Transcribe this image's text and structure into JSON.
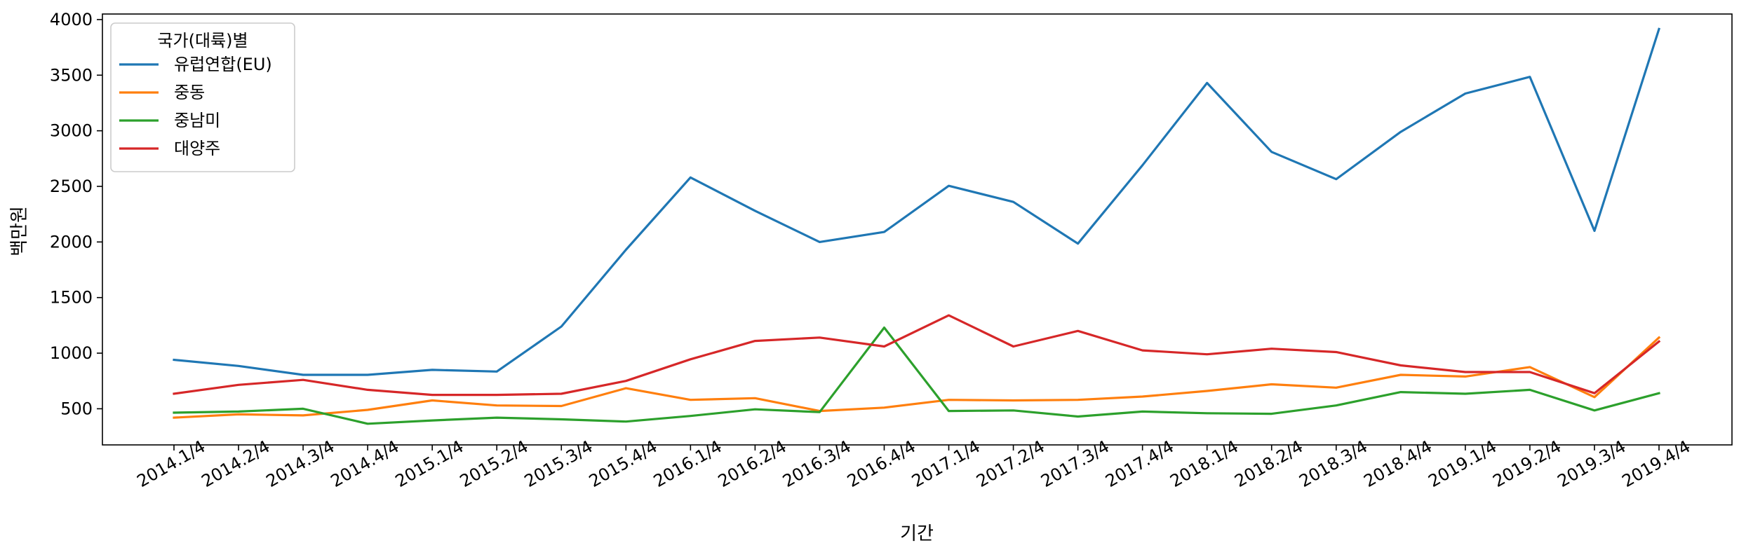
{
  "chart_data": {
    "type": "line",
    "xlabel": "기간",
    "ylabel": "백만원",
    "ylim": [
      175,
      4050
    ],
    "yticks": [
      500,
      1000,
      1500,
      2000,
      2500,
      3000,
      3500,
      4000
    ],
    "grid": false,
    "legend": {
      "title": "국가(대륙)별",
      "placement": "top-left"
    },
    "categories": [
      "2014.1/4",
      "2014.2/4",
      "2014.3/4",
      "2014.4/4",
      "2015.1/4",
      "2015.2/4",
      "2015.3/4",
      "2015.4/4",
      "2016.1/4",
      "2016.2/4",
      "2016.3/4",
      "2016.4/4",
      "2017.1/4",
      "2017.2/4",
      "2017.3/4",
      "2017.4/4",
      "2018.1/4",
      "2018.2/4",
      "2018.3/4",
      "2018.4/4",
      "2019.1/4",
      "2019.2/4",
      "2019.3/4",
      "2019.4/4"
    ],
    "series": [
      {
        "name": "유럽연합(EU)",
        "color": "#1f77b4",
        "values": [
          940,
          885,
          805,
          805,
          850,
          835,
          1240,
          1930,
          2580,
          2280,
          2000,
          2090,
          2505,
          2360,
          1985,
          2690,
          3430,
          2810,
          2565,
          2990,
          3335,
          3485,
          2100,
          3915
        ]
      },
      {
        "name": "중동",
        "color": "#ff7f0e",
        "values": [
          420,
          450,
          440,
          490,
          575,
          530,
          525,
          685,
          580,
          595,
          480,
          510,
          580,
          575,
          580,
          610,
          660,
          720,
          690,
          805,
          790,
          875,
          605,
          1140
        ]
      },
      {
        "name": "중남미",
        "color": "#2ca02c",
        "values": [
          465,
          475,
          500,
          365,
          395,
          420,
          405,
          385,
          435,
          495,
          470,
          1230,
          480,
          485,
          430,
          475,
          460,
          455,
          530,
          650,
          635,
          670,
          485,
          640
        ]
      },
      {
        "name": "대양주",
        "color": "#d62728",
        "values": [
          635,
          715,
          760,
          670,
          625,
          625,
          635,
          750,
          945,
          1110,
          1140,
          1060,
          1340,
          1060,
          1200,
          1025,
          990,
          1040,
          1010,
          890,
          830,
          830,
          640,
          1105
        ]
      }
    ]
  }
}
